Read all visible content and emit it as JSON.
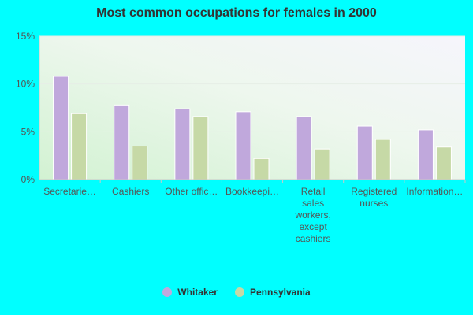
{
  "colors": {
    "background": "#00FFFF",
    "whitaker": "#C0A8DC",
    "pennsylvania": "#C6D9A6"
  },
  "chart_data": {
    "type": "bar",
    "title": "Most common occupations for females in 2000",
    "xlabel": "",
    "ylabel": "",
    "ylim": [
      0,
      15
    ],
    "yticks": [
      0,
      5,
      10,
      15
    ],
    "ytick_labels": [
      "0%",
      "5%",
      "10%",
      "15%"
    ],
    "categories": [
      [
        "Secretarie…"
      ],
      [
        "Cashiers"
      ],
      [
        "Other offic…"
      ],
      [
        "Bookkeepi…"
      ],
      [
        "Retail",
        "sales",
        "workers,",
        "except",
        "cashiers"
      ],
      [
        "Registered",
        "nurses"
      ],
      [
        "Information…"
      ]
    ],
    "series": [
      {
        "name": "Whitaker",
        "color": "#C0A8DC",
        "values": [
          10.8,
          7.8,
          7.4,
          7.1,
          6.6,
          5.6,
          5.2
        ]
      },
      {
        "name": "Pennsylvania",
        "color": "#C6D9A6",
        "values": [
          6.9,
          3.5,
          6.6,
          2.2,
          3.2,
          4.2,
          3.4
        ]
      }
    ],
    "grid": true,
    "legend": "bottom"
  }
}
